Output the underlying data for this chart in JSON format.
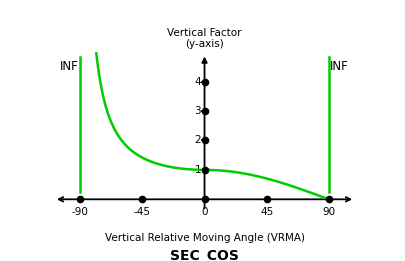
{
  "title": "SEC_COS",
  "xlabel": "Vertical Relative Moving Angle (VRMA)",
  "ylabel": "Vertical Factor\n(y-axis)",
  "xlim": [
    -110,
    110
  ],
  "ylim": [
    -0.5,
    5.0
  ],
  "x_ticks": [
    -90,
    -45,
    0,
    45,
    90
  ],
  "y_ticks": [
    1,
    2,
    3,
    4
  ],
  "curve_color": "#00cc00",
  "dot_color": "#000000",
  "axis_color": "#000000",
  "inf_label_left": "INF",
  "inf_label_right": "INF",
  "background_color": "#ffffff",
  "title_fontsize": 10,
  "label_fontsize": 7.5,
  "tick_fontsize": 7.5,
  "inf_fontsize": 8.5,
  "axis_lw": 1.3,
  "curve_lw": 1.8
}
